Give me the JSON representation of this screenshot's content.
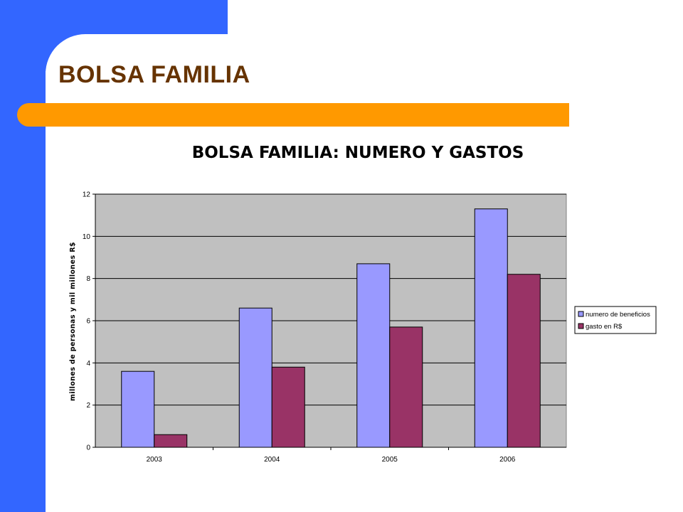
{
  "slide": {
    "title": "BOLSA FAMILIA"
  },
  "colors": {
    "background": "#ffffff",
    "accent_blue": "#3366ff",
    "accent_orange": "#ff9900",
    "title_color": "#663300",
    "plot_background": "#c0c0c0"
  },
  "chart_data": {
    "type": "bar",
    "title": "BOLSA FAMILIA: NUMERO Y GASTOS",
    "xlabel": "",
    "ylabel": "millones de personas y mil millones R$",
    "categories": [
      "2003",
      "2004",
      "2005",
      "2006"
    ],
    "ylim": [
      0,
      12
    ],
    "yticks": [
      0,
      2,
      4,
      6,
      8,
      10,
      12
    ],
    "grid": true,
    "legend_position": "right",
    "series": [
      {
        "name": "numero de beneficios",
        "color": "#9999ff",
        "values": [
          3.6,
          6.6,
          8.7,
          11.3
        ]
      },
      {
        "name": "gasto en R$",
        "color": "#993366",
        "values": [
          0.6,
          3.8,
          5.7,
          8.2
        ]
      }
    ]
  }
}
